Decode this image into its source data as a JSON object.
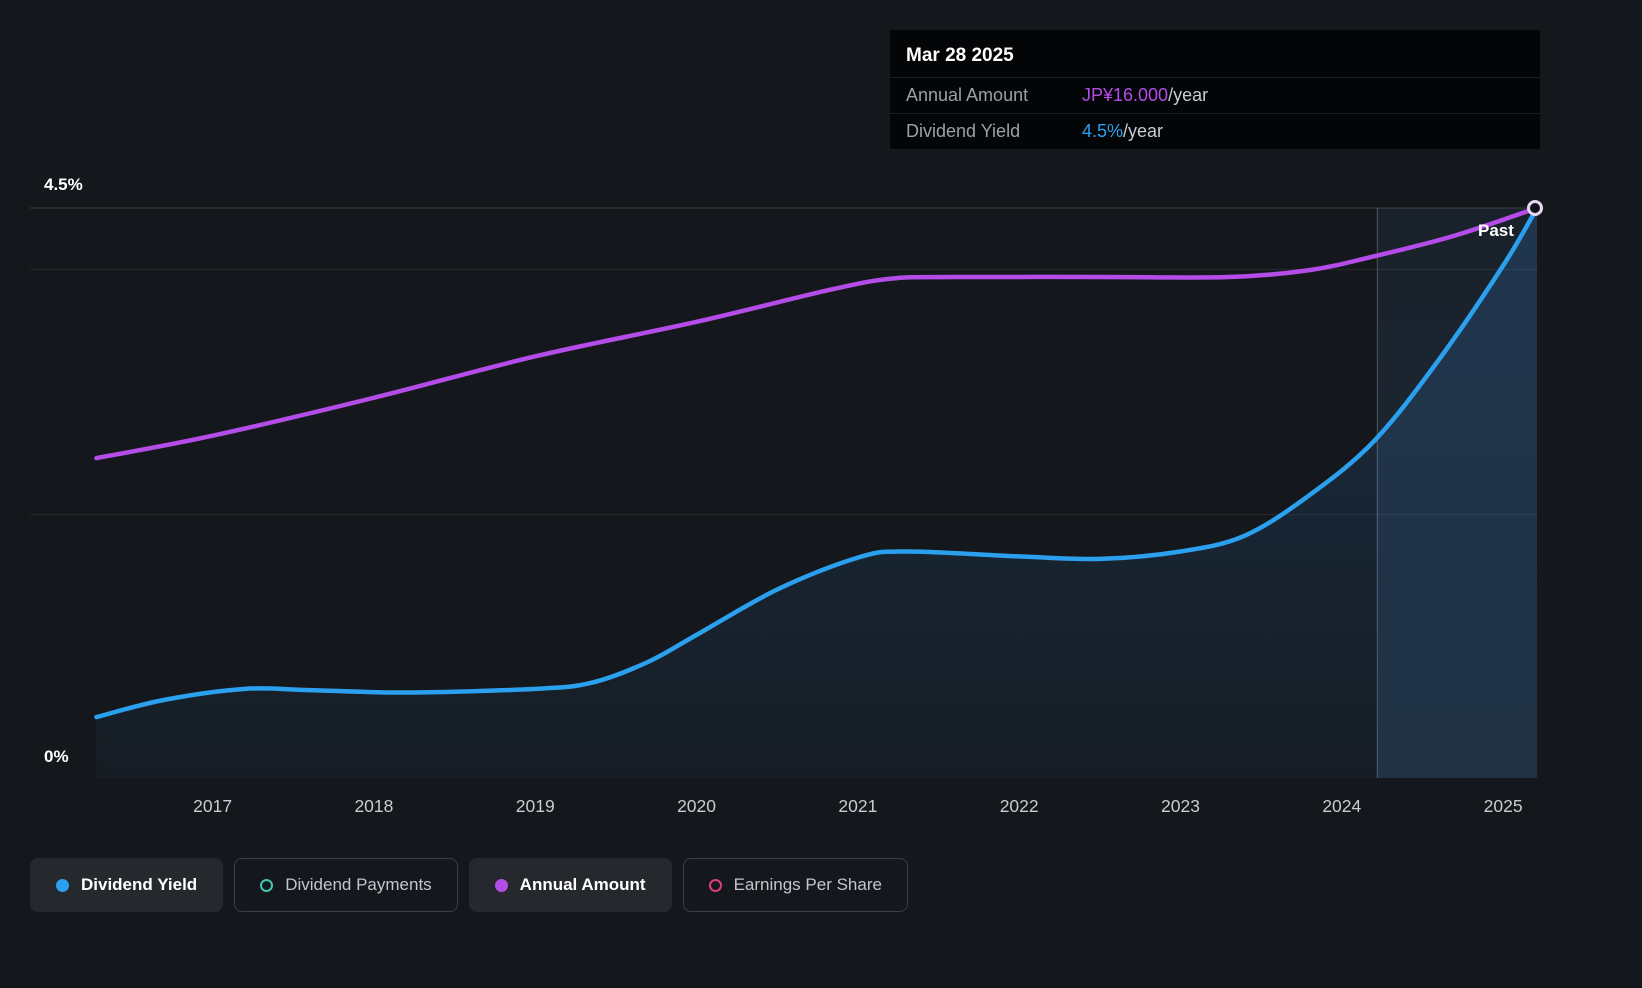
{
  "page": {
    "background": "#14171b"
  },
  "tooltip": {
    "date": "Mar 28 2025",
    "rows": [
      {
        "label": "Annual Amount",
        "value": "JP¥16.000",
        "suffix": "/year",
        "color": "#b44ce8"
      },
      {
        "label": "Dividend Yield",
        "value": "4.5%",
        "suffix": "/year",
        "color": "#2ba0ee"
      }
    ]
  },
  "chart_data": {
    "type": "line",
    "x_range": [
      2016.24,
      2025.21
    ],
    "x_ticks": [
      "2017",
      "2018",
      "2019",
      "2020",
      "2021",
      "2022",
      "2023",
      "2024",
      "2025"
    ],
    "y_axis": {
      "min": 0,
      "max": 4.5,
      "top_label": "4.5%",
      "bottom_label": "0%",
      "gridlines_pct": [
        4.5,
        4.0,
        2.0
      ]
    },
    "past_divider_year": 2024.22,
    "past_label": "Past",
    "series": [
      {
        "name": "Dividend Yield",
        "color": "#2ba0ee",
        "unit": "%",
        "axis_max": 4.5,
        "points": [
          [
            2016.28,
            0.35
          ],
          [
            2016.7,
            0.49
          ],
          [
            2017.2,
            0.58
          ],
          [
            2017.6,
            0.57
          ],
          [
            2018.2,
            0.55
          ],
          [
            2019.0,
            0.58
          ],
          [
            2019.35,
            0.63
          ],
          [
            2019.7,
            0.8
          ],
          [
            2020.0,
            1.02
          ],
          [
            2020.5,
            1.39
          ],
          [
            2021.0,
            1.65
          ],
          [
            2021.3,
            1.7
          ],
          [
            2022.0,
            1.66
          ],
          [
            2022.5,
            1.64
          ],
          [
            2023.0,
            1.7
          ],
          [
            2023.4,
            1.83
          ],
          [
            2023.8,
            2.16
          ],
          [
            2024.2,
            2.6
          ],
          [
            2024.6,
            3.26
          ],
          [
            2025.0,
            4.03
          ],
          [
            2025.21,
            4.5
          ]
        ]
      },
      {
        "name": "Annual Amount",
        "color": "#b44ce8",
        "unit": "JP¥/year",
        "axis_max": 16,
        "points": [
          [
            2016.28,
            8.75
          ],
          [
            2017.0,
            9.4
          ],
          [
            2018.0,
            10.5
          ],
          [
            2019.0,
            11.7
          ],
          [
            2020.0,
            12.7
          ],
          [
            2020.8,
            13.6
          ],
          [
            2021.2,
            13.95
          ],
          [
            2021.6,
            14.0
          ],
          [
            2022.5,
            14.0
          ],
          [
            2023.3,
            14.0
          ],
          [
            2023.8,
            14.2
          ],
          [
            2024.2,
            14.6
          ],
          [
            2024.7,
            15.2
          ],
          [
            2025.21,
            16.0
          ]
        ]
      }
    ]
  },
  "legend": {
    "items": [
      {
        "label": "Dividend Yield",
        "color": "#2ba0ee",
        "marker": "filled",
        "active": true
      },
      {
        "label": "Dividend Payments",
        "color": "#43c6b4",
        "marker": "open",
        "active": false
      },
      {
        "label": "Annual Amount",
        "color": "#b44ce8",
        "marker": "filled",
        "active": true
      },
      {
        "label": "Earnings Per Share",
        "color": "#dd3f7d",
        "marker": "open",
        "active": false
      }
    ]
  }
}
